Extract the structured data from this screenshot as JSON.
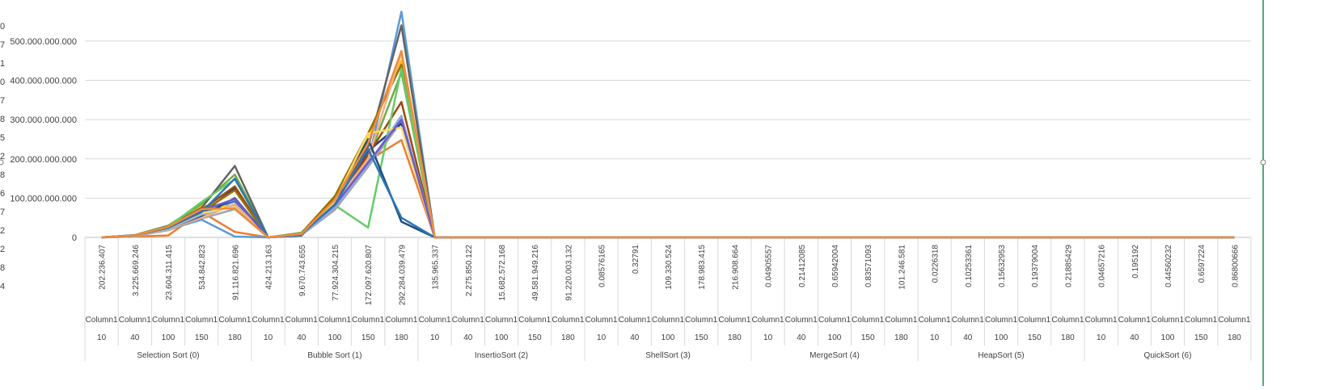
{
  "window": {
    "left_edge_glyphs": [
      "0",
      "7",
      "1",
      "0",
      "7",
      "8",
      "5",
      "2",
      "8",
      "6",
      "7",
      "2",
      "2",
      "8",
      "4"
    ]
  },
  "chart_data": {
    "type": "line",
    "ylim": [
      0,
      580000000000
    ],
    "yticks": [
      {
        "value": 0,
        "label": "0"
      },
      {
        "value": 100000000000,
        "label": "100.000.000.000"
      },
      {
        "value": 200000000000,
        "label": "200.000.000.000"
      },
      {
        "value": 300000000000,
        "label": "300.000.000.000"
      },
      {
        "value": 400000000000,
        "label": "400.000.000.000"
      },
      {
        "value": 500000000000,
        "label": "500.000.000.000"
      }
    ],
    "grid": true,
    "groups": [
      "Selection Sort (0)",
      "Bubble Sort (1)",
      "InsertioSort (2)",
      "ShellSort (3)",
      "MergeSort (4)",
      "HeapSort (5)",
      "QuickSort (6)"
    ],
    "sizes": [
      "10",
      "40",
      "100",
      "150",
      "180"
    ],
    "row2_label": "Column1",
    "row1_values": [
      "202.236.407",
      "3.225.669.246",
      "23.604.311.415",
      "534.842.823",
      "91.116.821.696",
      "424.213.163",
      "9.670.743.655",
      "77.924.304.215",
      "172.097.620.807",
      "292.284.039.479",
      "135.965.337",
      "2.275.850.122",
      "15.682.572.168",
      "49.581.949.216",
      "91.220.003.132",
      "0.08576165",
      "0.32791",
      "109.330.524",
      "178.983.415",
      "216.908.664",
      "0.04905557",
      "0.21412085",
      "0.65942004",
      "0.83571093",
      "101.246.581",
      "0.0226318",
      "0.10253361",
      "0.15632953",
      "0.19379004",
      "0.21885429",
      "0.04657216",
      "0.195192",
      "0.44560232",
      "0.6597224",
      "0.86800666"
    ],
    "series": [
      {
        "color": "#4472C4",
        "values": [
          0,
          4000000000,
          22000000000,
          62000000000,
          92000000000,
          0,
          8000000000,
          75000000000,
          180000000000,
          300000000000
        ]
      },
      {
        "color": "#ED7D31",
        "values": [
          0,
          2000000000,
          5000000000,
          65000000000,
          14000000000,
          0,
          5000000000,
          90000000000,
          195000000000,
          248000000000
        ]
      },
      {
        "color": "#A5A5A5",
        "values": [
          0,
          3000000000,
          18000000000,
          48000000000,
          72000000000,
          0,
          6000000000,
          70000000000,
          180000000000,
          295000000000
        ]
      },
      {
        "color": "#FFC000",
        "values": [
          0,
          5000000000,
          28000000000,
          80000000000,
          80000000000,
          0,
          10000000000,
          100000000000,
          260000000000,
          450000000000
        ]
      },
      {
        "color": "#5B9BD5",
        "values": [
          0,
          3500000000,
          20000000000,
          45000000000,
          2000000000,
          0,
          7000000000,
          80000000000,
          190000000000,
          575000000000
        ]
      },
      {
        "color": "#70AD47",
        "values": [
          0,
          6000000000,
          30000000000,
          85000000000,
          160000000000,
          0,
          12000000000,
          95000000000,
          200000000000,
          420000000000
        ]
      },
      {
        "color": "#264478",
        "values": [
          0,
          4000000000,
          25000000000,
          60000000000,
          125000000000,
          0,
          8000000000,
          85000000000,
          220000000000,
          290000000000
        ]
      },
      {
        "color": "#9E480E",
        "values": [
          0,
          5000000000,
          26000000000,
          70000000000,
          130000000000,
          0,
          9000000000,
          90000000000,
          210000000000,
          345000000000
        ]
      },
      {
        "color": "#636363",
        "values": [
          0,
          5500000000,
          28000000000,
          75000000000,
          182000000000,
          0,
          9500000000,
          98000000000,
          230000000000,
          540000000000
        ]
      },
      {
        "color": "#997300",
        "values": [
          0,
          4500000000,
          24000000000,
          65000000000,
          120000000000,
          0,
          11000000000,
          105000000000,
          265000000000,
          440000000000
        ]
      },
      {
        "color": "#66CC66",
        "values": [
          0,
          5000000000,
          27000000000,
          90000000000,
          148000000000,
          0,
          10000000000,
          82000000000,
          25000000000,
          430000000000
        ]
      },
      {
        "color": "#F4B183",
        "values": [
          0,
          3000000000,
          20000000000,
          50000000000,
          85000000000,
          0,
          7500000000,
          88000000000,
          200000000000,
          470000000000
        ]
      },
      {
        "color": "#1F4E79",
        "values": [
          0,
          4000000000,
          22000000000,
          55000000000,
          100000000000,
          0,
          5000000000,
          95000000000,
          250000000000,
          40000000000
        ]
      },
      {
        "color": "#8FAADC",
        "values": [
          0,
          3800000000,
          21000000000,
          58000000000,
          80000000000,
          0,
          7000000000,
          75000000000,
          185000000000,
          310000000000
        ]
      },
      {
        "color": "#FFD966",
        "values": [
          0,
          4200000000,
          23000000000,
          62000000000,
          78000000000,
          0,
          8500000000,
          92000000000,
          265000000000,
          280000000000
        ]
      },
      {
        "color": "#6B5BCF",
        "values": [
          0,
          4600000000,
          26000000000,
          68000000000,
          98000000000,
          0,
          9000000000,
          82000000000,
          190000000000,
          300000000000
        ]
      },
      {
        "color": "#2E75B6",
        "values": [
          0,
          4800000000,
          24000000000,
          64000000000,
          150000000000,
          0,
          8000000000,
          84000000000,
          225000000000,
          50000000000
        ]
      },
      {
        "color": "#F08C3A",
        "values": [
          0,
          5200000000,
          27000000000,
          72000000000,
          74000000000,
          0,
          9000000000,
          96000000000,
          240000000000,
          475000000000
        ]
      }
    ]
  }
}
